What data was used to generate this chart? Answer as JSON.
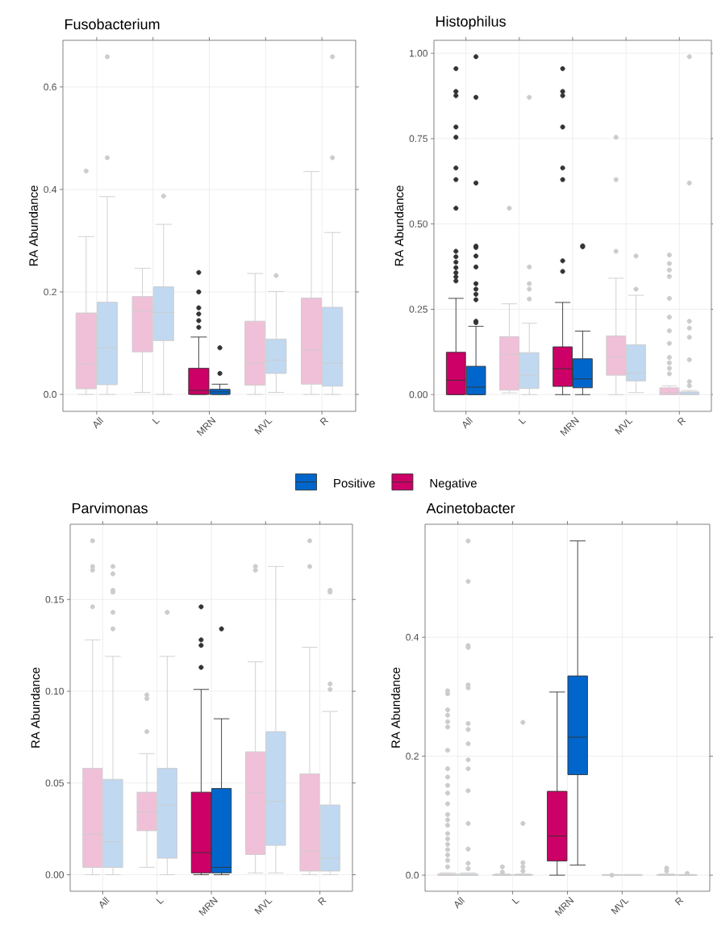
{
  "chart_data": [
    {
      "type": "box",
      "title": "Fusobacterium",
      "ylabel": "RA Abundance",
      "categories": [
        "All",
        "L",
        "MRN",
        "MVL",
        "R"
      ],
      "ylim": [
        -0.033,
        0.691
      ],
      "yticks": [
        {
          "value": 0,
          "label": "0.0"
        },
        {
          "value": 0.2,
          "label": "0.2"
        },
        {
          "value": 0.4,
          "label": "0.4"
        },
        {
          "value": 0.6,
          "label": "0.6"
        }
      ],
      "grid": true,
      "legend": "bottom",
      "series": [
        {
          "name": "Negative",
          "color": "#cc0066",
          "colors": [
            "#f0c0d8",
            "#f0c0d8",
            "#cc0066",
            "#f0c0d8",
            "#f0c0d8"
          ],
          "boxes": [
            {
              "low": 0.0,
              "q1": 0.011,
              "median": 0.059,
              "q3": 0.159,
              "high": 0.308,
              "outliers": [
                0.436
              ]
            },
            {
              "low": 0.004,
              "q1": 0.083,
              "median": 0.163,
              "q3": 0.191,
              "high": 0.246
            },
            {
              "low": 0.0,
              "q1": 0.0,
              "median": 0.008,
              "q3": 0.051,
              "high": 0.112,
              "outliers": [
                0.131,
                0.144,
                0.157,
                0.169,
                0.2,
                0.238
              ]
            },
            {
              "low": 0.0,
              "q1": 0.018,
              "median": 0.061,
              "q3": 0.143,
              "high": 0.236
            },
            {
              "low": 0.0,
              "q1": 0.02,
              "median": 0.087,
              "q3": 0.188,
              "high": 0.435
            }
          ]
        },
        {
          "name": "Positive",
          "color": "#0066cc",
          "colors": [
            "#c0d8f0",
            "#c0d8f0",
            "#0066cc",
            "#c0d8f0",
            "#c0d8f0"
          ],
          "boxes": [
            {
              "low": 0.0,
              "q1": 0.019,
              "median": 0.091,
              "q3": 0.18,
              "high": 0.386,
              "outliers": [
                0.462,
                0.659
              ]
            },
            {
              "low": 0.0,
              "q1": 0.105,
              "median": 0.16,
              "q3": 0.21,
              "high": 0.332,
              "outliers": [
                0.387
              ]
            },
            {
              "low": 0.0,
              "q1": 0.0,
              "median": 0.005,
              "q3": 0.01,
              "high": 0.02,
              "outliers": [
                0.041,
                0.091
              ]
            },
            {
              "low": 0.004,
              "q1": 0.041,
              "median": 0.067,
              "q3": 0.108,
              "high": 0.201,
              "outliers": [
                0.232
              ]
            },
            {
              "low": 0.0,
              "q1": 0.016,
              "median": 0.061,
              "q3": 0.17,
              "high": 0.316,
              "outliers": [
                0.462,
                0.659
              ]
            }
          ]
        }
      ]
    },
    {
      "type": "box",
      "title": "Histophilus",
      "ylabel": "RA Abundance",
      "categories": [
        "All",
        "L",
        "MRN",
        "MVL",
        "R"
      ],
      "ylim": [
        -0.049,
        1.038
      ],
      "yticks": [
        {
          "value": 0,
          "label": "0.00"
        },
        {
          "value": 0.25,
          "label": "0.25"
        },
        {
          "value": 0.5,
          "label": "0.50"
        },
        {
          "value": 0.75,
          "label": "0.75"
        },
        {
          "value": 1,
          "label": "1.00"
        }
      ],
      "grid": true,
      "series": [
        {
          "colors": [
            "#cc0066",
            "#f0c0d8",
            "#cc0066",
            "#f0c0d8",
            "#f0c0d8"
          ],
          "boxes": [
            {
              "low": 0.0,
              "q1": 0.0,
              "median": 0.042,
              "q3": 0.124,
              "high": 0.282,
              "outliers": [
                0.333,
                0.345,
                0.357,
                0.372,
                0.388,
                0.404,
                0.42,
                0.546,
                0.63,
                0.664,
                0.754,
                0.784,
                0.876,
                0.888,
                0.955
              ]
            },
            {
              "low": 0.005,
              "q1": 0.013,
              "median": 0.118,
              "q3": 0.17,
              "high": 0.266,
              "outliers": [
                0.546
              ]
            },
            {
              "low": 0.0,
              "q1": 0.024,
              "median": 0.076,
              "q3": 0.14,
              "high": 0.27,
              "outliers": [
                0.361,
                0.392,
                0.63,
                0.664,
                0.784,
                0.876,
                0.888,
                0.955
              ]
            },
            {
              "low": 0.0,
              "q1": 0.057,
              "median": 0.11,
              "q3": 0.172,
              "high": 0.341,
              "outliers": [
                0.42,
                0.63,
                0.754
              ]
            },
            {
              "low": 0.0,
              "q1": 0.0,
              "median": 0.006,
              "q3": 0.02,
              "high": 0.026,
              "outliers": [
                0.061,
                0.077,
                0.093,
                0.109,
                0.15,
                0.187,
                0.227,
                0.282,
                0.346,
                0.365,
                0.384,
                0.409
              ]
            }
          ]
        },
        {
          "colors": [
            "#0066cc",
            "#c0d8f0",
            "#0066cc",
            "#c0d8f0",
            "#c0d8f0"
          ],
          "boxes": [
            {
              "low": 0.0,
              "q1": 0.0,
              "median": 0.022,
              "q3": 0.083,
              "high": 0.2,
              "outliers": [
                0.211,
                0.215,
                0.278,
                0.294,
                0.309,
                0.325,
                0.374,
                0.406,
                0.431,
                0.435,
                0.62,
                0.871,
                0.99
              ]
            },
            {
              "low": 0.0,
              "q1": 0.018,
              "median": 0.057,
              "q3": 0.123,
              "high": 0.209,
              "outliers": [
                0.28,
                0.309,
                0.325,
                0.374,
                0.871
              ]
            },
            {
              "low": 0.0,
              "q1": 0.02,
              "median": 0.046,
              "q3": 0.105,
              "high": 0.186,
              "outliers": [
                0.433,
                0.436
              ]
            },
            {
              "low": 0.006,
              "q1": 0.04,
              "median": 0.063,
              "q3": 0.146,
              "high": 0.291,
              "outliers": [
                0.309,
                0.406
              ]
            },
            {
              "low": 0.0,
              "q1": 0.0,
              "median": 0.002,
              "q3": 0.008,
              "high": 0.012,
              "outliers": [
                0.026,
                0.038,
                0.102,
                0.168,
                0.195,
                0.215,
                0.62,
                0.99
              ]
            }
          ]
        }
      ]
    },
    {
      "type": "box",
      "title": "Parvimonas",
      "ylabel": "RA Abundance",
      "categories": [
        "All",
        "L",
        "MRN",
        "MVL",
        "R"
      ],
      "ylim": [
        -0.009,
        0.191
      ],
      "yticks": [
        {
          "value": 0,
          "label": "0.00"
        },
        {
          "value": 0.05,
          "label": "0.05"
        },
        {
          "value": 0.1,
          "label": "0.10"
        },
        {
          "value": 0.15,
          "label": "0.15"
        }
      ],
      "grid": true,
      "series": [
        {
          "colors": [
            "#f0c0d8",
            "#f0c0d8",
            "#cc0066",
            "#f0c0d8",
            "#f0c0d8"
          ],
          "boxes": [
            {
              "low": 0.0,
              "q1": 0.004,
              "median": 0.022,
              "q3": 0.058,
              "high": 0.128,
              "outliers": [
                0.146,
                0.166,
                0.168,
                0.182
              ]
            },
            {
              "low": 0.004,
              "q1": 0.024,
              "median": 0.034,
              "q3": 0.045,
              "high": 0.066,
              "outliers": [
                0.078,
                0.096,
                0.098
              ]
            },
            {
              "low": 0.0,
              "q1": 0.001,
              "median": 0.012,
              "q3": 0.045,
              "high": 0.101,
              "outliers": [
                0.113,
                0.125,
                0.128,
                0.146
              ]
            },
            {
              "low": 0.001,
              "q1": 0.011,
              "median": 0.045,
              "q3": 0.067,
              "high": 0.116,
              "outliers": [
                0.166,
                0.168
              ]
            },
            {
              "low": 0.0,
              "q1": 0.002,
              "median": 0.013,
              "q3": 0.055,
              "high": 0.124,
              "outliers": [
                0.168,
                0.182
              ]
            }
          ]
        },
        {
          "colors": [
            "#c0d8f0",
            "#c0d8f0",
            "#0066cc",
            "#c0d8f0",
            "#c0d8f0"
          ],
          "boxes": [
            {
              "low": 0.0,
              "q1": 0.004,
              "median": 0.018,
              "q3": 0.052,
              "high": 0.119,
              "outliers": [
                0.134,
                0.143,
                0.154,
                0.155,
                0.164,
                0.168
              ]
            },
            {
              "low": 0.0,
              "q1": 0.009,
              "median": 0.038,
              "q3": 0.058,
              "high": 0.119,
              "outliers": [
                0.143
              ]
            },
            {
              "low": 0.0,
              "q1": 0.001,
              "median": 0.004,
              "q3": 0.047,
              "high": 0.085,
              "outliers": [
                0.134
              ]
            },
            {
              "low": 0.001,
              "q1": 0.016,
              "median": 0.04,
              "q3": 0.078,
              "high": 0.168
            },
            {
              "low": 0.0,
              "q1": 0.002,
              "median": 0.009,
              "q3": 0.038,
              "high": 0.089,
              "outliers": [
                0.101,
                0.104,
                0.154,
                0.155
              ]
            }
          ]
        }
      ]
    },
    {
      "type": "box",
      "title": "Acinetobacter",
      "ylabel": "RA Abundance",
      "categories": [
        "All",
        "L",
        "MRN",
        "MVL",
        "R"
      ],
      "ylim": [
        -0.027,
        0.59
      ],
      "yticks": [
        {
          "value": 0,
          "label": "0.0"
        },
        {
          "value": 0.2,
          "label": "0.2"
        },
        {
          "value": 0.4,
          "label": "0.4"
        }
      ],
      "grid": true,
      "series": [
        {
          "colors": [
            "#f0c0d8",
            "#f0c0d8",
            "#cc0066",
            "#f0c0d8",
            "#f0c0d8"
          ],
          "boxes": [
            {
              "low": 0.0,
              "q1": 0.0,
              "median": 0.0,
              "q3": 0.002,
              "high": 0.004,
              "outliers": [
                0.014,
                0.025,
                0.034,
                0.043,
                0.052,
                0.061,
                0.07,
                0.084,
                0.093,
                0.102,
                0.12,
                0.138,
                0.151,
                0.165,
                0.179,
                0.21,
                0.249,
                0.258,
                0.269,
                0.278,
                0.305,
                0.31
              ]
            },
            {
              "low": 0.0,
              "q1": 0.0,
              "median": 0.0,
              "q3": 0.001,
              "high": 0.002,
              "outliers": [
                0.005,
                0.014
              ]
            },
            {
              "low": 0.0,
              "q1": 0.024,
              "median": 0.066,
              "q3": 0.141,
              "high": 0.308
            },
            {
              "low": 0.0,
              "q1": 0.0,
              "median": 0.0,
              "q3": 0.001,
              "high": 0.001,
              "outliers": [
                0.0
              ]
            },
            {
              "low": 0.0,
              "q1": 0.0,
              "median": 0.0,
              "q3": 0.001,
              "high": 0.002,
              "outliers": [
                0.007,
                0.012
              ]
            }
          ]
        },
        {
          "colors": [
            "#c0d8f0",
            "#c0d8f0",
            "#0066cc",
            "#c0d8f0",
            "#c0d8f0"
          ],
          "boxes": [
            {
              "low": 0.0,
              "q1": 0.0,
              "median": 0.0,
              "q3": 0.002,
              "high": 0.004,
              "outliers": [
                0.011,
                0.02,
                0.044,
                0.087,
                0.142,
                0.179,
                0.194,
                0.221,
                0.245,
                0.255,
                0.315,
                0.32,
                0.383,
                0.386,
                0.494,
                0.562
              ]
            },
            {
              "low": 0.0,
              "q1": 0.0,
              "median": 0.0,
              "q3": 0.001,
              "high": 0.002,
              "outliers": [
                0.007,
                0.014,
                0.021,
                0.087,
                0.257
              ]
            },
            {
              "low": 0.017,
              "q1": 0.169,
              "median": 0.232,
              "q3": 0.335,
              "high": 0.562
            },
            {
              "low": 0.0,
              "q1": 0.0,
              "median": 0.0,
              "q3": 0.001,
              "high": 0.001
            },
            {
              "low": 0.0,
              "q1": 0.0,
              "median": 0.0,
              "q3": 0.001,
              "high": 0.001,
              "outliers": [
                0.003
              ]
            }
          ]
        }
      ]
    }
  ]
}
